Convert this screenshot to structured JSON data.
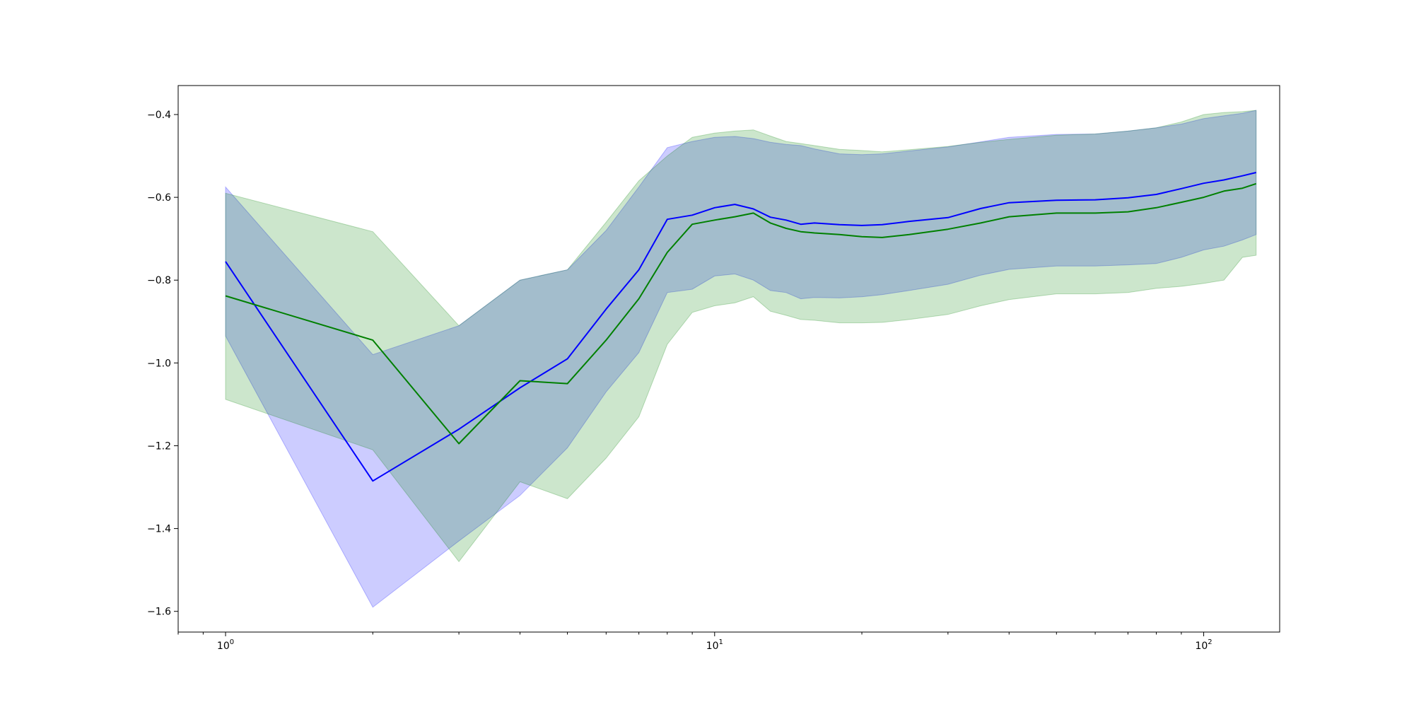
{
  "chart_data": {
    "type": "line",
    "xscale": "log",
    "xlim": [
      0.8,
      143
    ],
    "ylim": [
      -1.65,
      -0.33
    ],
    "grid": false,
    "x_ticks": [
      {
        "value": 1,
        "base": "10",
        "exp": "0"
      },
      {
        "value": 10,
        "base": "10",
        "exp": "1"
      },
      {
        "value": 100,
        "base": "10",
        "exp": "2"
      }
    ],
    "y_ticks": [
      {
        "value": -0.4,
        "label": "−0.4"
      },
      {
        "value": -0.6,
        "label": "−0.6"
      },
      {
        "value": -0.8,
        "label": "−0.8"
      },
      {
        "value": -1.0,
        "label": "−1.0"
      },
      {
        "value": -1.2,
        "label": "−1.2"
      },
      {
        "value": -1.4,
        "label": "−1.4"
      },
      {
        "value": -1.6,
        "label": "−1.6"
      }
    ],
    "series": [
      {
        "color": "#0000ff",
        "band_color": "#0000ff",
        "band_opacity": 0.2,
        "x": [
          1,
          2,
          3,
          4,
          5,
          6,
          7,
          8,
          9,
          10,
          11,
          12,
          13,
          14,
          15,
          16,
          18,
          20,
          22,
          25,
          30,
          35,
          40,
          50,
          60,
          70,
          80,
          90,
          100,
          110,
          120,
          128
        ],
        "y": [
          -0.755,
          -1.285,
          -1.16,
          -1.06,
          -0.99,
          -0.87,
          -0.775,
          -0.653,
          -0.643,
          -0.625,
          -0.617,
          -0.628,
          -0.648,
          -0.655,
          -0.665,
          -0.662,
          -0.666,
          -0.668,
          -0.666,
          -0.658,
          -0.649,
          -0.627,
          -0.613,
          -0.607,
          -0.606,
          -0.601,
          -0.593,
          -0.579,
          -0.566,
          -0.558,
          -0.548,
          -0.54
        ],
        "upper": [
          -0.575,
          -0.98,
          -0.91,
          -0.8,
          -0.775,
          -0.68,
          -0.575,
          -0.48,
          -0.465,
          -0.455,
          -0.453,
          -0.458,
          -0.467,
          -0.472,
          -0.475,
          -0.483,
          -0.495,
          -0.497,
          -0.495,
          -0.488,
          -0.478,
          -0.466,
          -0.455,
          -0.448,
          -0.447,
          -0.44,
          -0.432,
          -0.423,
          -0.41,
          -0.403,
          -0.397,
          -0.39
        ],
        "lower": [
          -0.935,
          -1.59,
          -1.43,
          -1.32,
          -1.205,
          -1.07,
          -0.975,
          -0.83,
          -0.822,
          -0.79,
          -0.785,
          -0.8,
          -0.825,
          -0.83,
          -0.845,
          -0.842,
          -0.843,
          -0.84,
          -0.835,
          -0.825,
          -0.81,
          -0.788,
          -0.774,
          -0.766,
          -0.766,
          -0.763,
          -0.76,
          -0.745,
          -0.727,
          -0.718,
          -0.703,
          -0.69
        ]
      },
      {
        "color": "#008000",
        "band_color": "#008000",
        "band_opacity": 0.2,
        "x": [
          1,
          2,
          3,
          4,
          5,
          6,
          7,
          8,
          9,
          10,
          11,
          12,
          13,
          14,
          15,
          16,
          18,
          20,
          22,
          25,
          30,
          35,
          40,
          50,
          60,
          70,
          80,
          90,
          100,
          110,
          120,
          128
        ],
        "y": [
          -0.838,
          -0.945,
          -1.195,
          -1.043,
          -1.05,
          -0.945,
          -0.845,
          -0.733,
          -0.665,
          -0.655,
          -0.647,
          -0.638,
          -0.662,
          -0.675,
          -0.683,
          -0.686,
          -0.69,
          -0.695,
          -0.697,
          -0.69,
          -0.677,
          -0.662,
          -0.647,
          -0.638,
          -0.638,
          -0.635,
          -0.625,
          -0.612,
          -0.6,
          -0.585,
          -0.578,
          -0.567
        ],
        "upper": [
          -0.59,
          -0.683,
          -0.91,
          -0.8,
          -0.775,
          -0.66,
          -0.56,
          -0.5,
          -0.455,
          -0.445,
          -0.44,
          -0.437,
          -0.452,
          -0.465,
          -0.47,
          -0.475,
          -0.484,
          -0.487,
          -0.49,
          -0.485,
          -0.477,
          -0.467,
          -0.46,
          -0.45,
          -0.447,
          -0.44,
          -0.432,
          -0.418,
          -0.4,
          -0.395,
          -0.393,
          -0.39
        ],
        "lower": [
          -1.088,
          -1.21,
          -1.48,
          -1.287,
          -1.328,
          -1.23,
          -1.13,
          -0.955,
          -0.878,
          -0.862,
          -0.855,
          -0.84,
          -0.875,
          -0.885,
          -0.895,
          -0.897,
          -0.903,
          -0.903,
          -0.902,
          -0.895,
          -0.883,
          -0.862,
          -0.847,
          -0.833,
          -0.833,
          -0.83,
          -0.82,
          -0.815,
          -0.808,
          -0.8,
          -0.745,
          -0.74
        ]
      }
    ]
  }
}
